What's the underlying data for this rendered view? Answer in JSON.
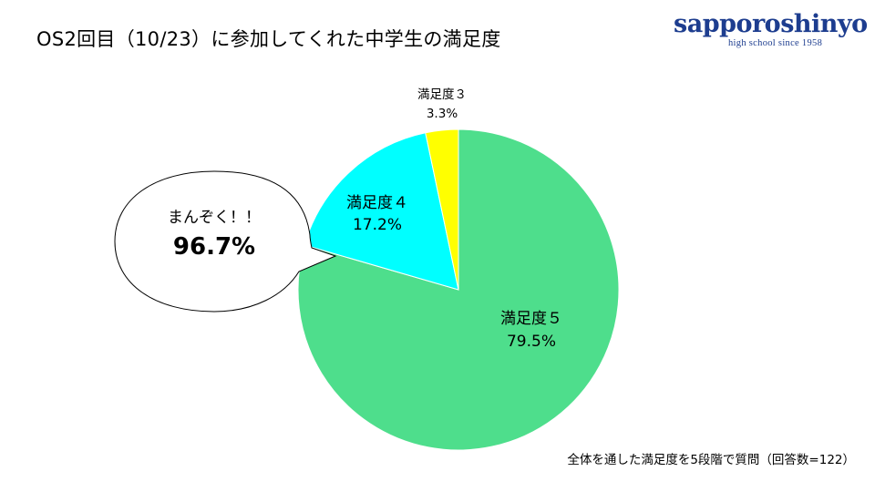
{
  "slide": {
    "title": "OS2回目（10/23）に参加してくれた中学生の満足度",
    "logo": {
      "main": "sapporoshinyo",
      "sub": "high school since 1958"
    },
    "footnote": "全体を通した満足度を5段階で質問（回答数=122）",
    "callout": {
      "line1": "まんぞく！！",
      "line2": "96.7%"
    }
  },
  "chart_data": {
    "type": "pie",
    "start_angle_deg": 0,
    "direction": "clockwise",
    "slices": [
      {
        "label": "満足度５",
        "value": 79.5,
        "value_label": "79.5%",
        "color": "#4ede8c"
      },
      {
        "label": "満足度４",
        "value": 17.2,
        "value_label": "17.2%",
        "color": "#00ffff"
      },
      {
        "label": "満足度３",
        "value": 3.3,
        "value_label": "3.3%",
        "color": "#ffff00"
      }
    ]
  }
}
